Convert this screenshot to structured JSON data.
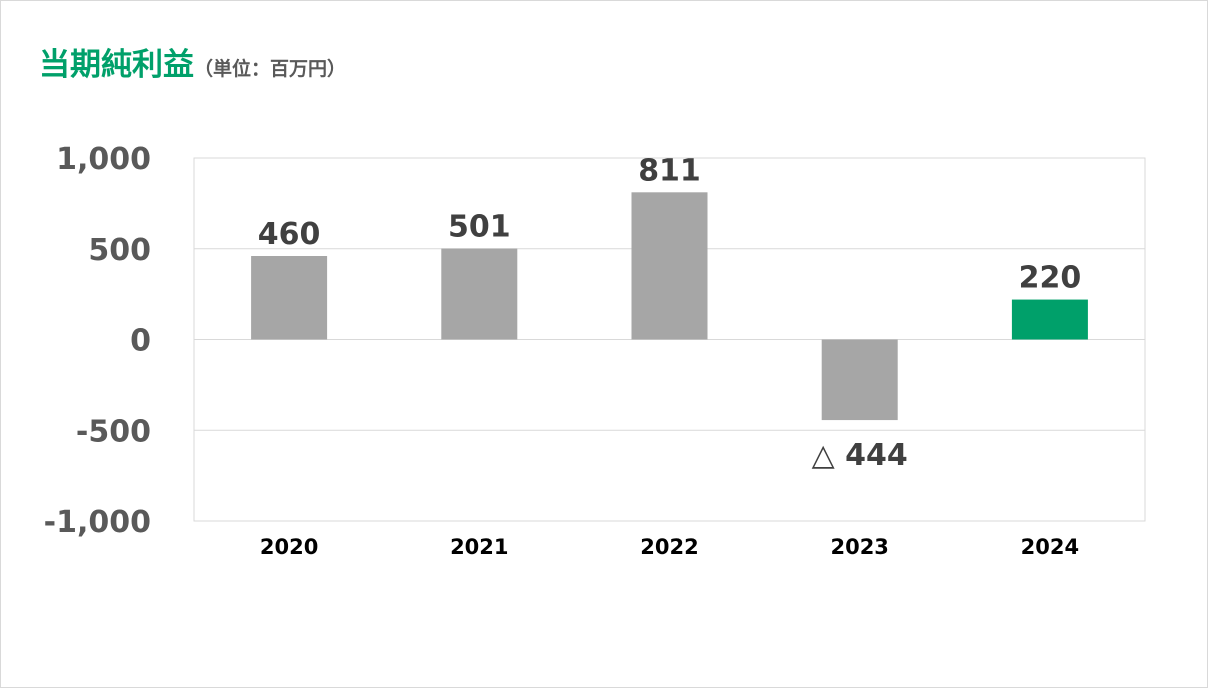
{
  "title": "当期純利益",
  "unit": "（単位：百万円）",
  "chart_data": {
    "type": "bar",
    "categories": [
      "2020",
      "2021",
      "2022",
      "2023",
      "2024"
    ],
    "values": [
      460,
      501,
      811,
      -444,
      220
    ],
    "data_labels": [
      "460",
      "501",
      "811",
      "△ 444",
      "220"
    ],
    "ylim": [
      -1000,
      1000
    ],
    "yticks": [
      1000,
      500,
      0,
      -500,
      -1000
    ],
    "ytick_labels": [
      "1,000",
      "500",
      "0",
      "-500",
      "-1,000"
    ],
    "grid": true,
    "colors": {
      "default": "#a6a6a6",
      "highlight": "#00a06a",
      "highlight_category": "2024",
      "grid": "#d9d9d9",
      "axis_text": "#595959",
      "label_text": "#404040",
      "category_text": "#000000"
    }
  }
}
